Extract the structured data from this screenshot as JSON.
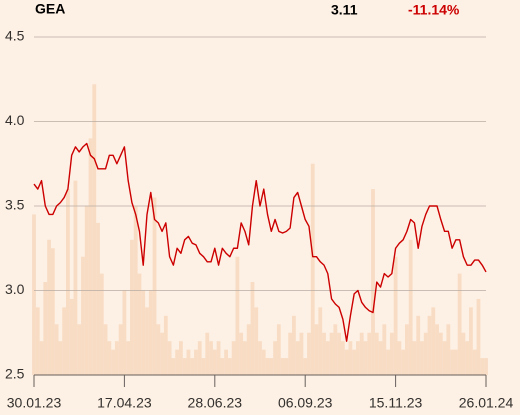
{
  "header": {
    "ticker": "GEA",
    "price": "3.11",
    "change": "-11.14%"
  },
  "chart_data": {
    "type": "line",
    "categories": [
      "30.01.23",
      null,
      null,
      null,
      null,
      null,
      null,
      null,
      null,
      null,
      null,
      null,
      null,
      null,
      null,
      null,
      null,
      null,
      null,
      null,
      null,
      null,
      null,
      null,
      "17.04.23",
      null,
      null,
      null,
      null,
      null,
      null,
      null,
      null,
      null,
      null,
      null,
      null,
      null,
      null,
      null,
      null,
      null,
      null,
      null,
      null,
      null,
      null,
      null,
      "28.06.23",
      null,
      null,
      null,
      null,
      null,
      null,
      null,
      null,
      null,
      null,
      null,
      null,
      null,
      null,
      null,
      null,
      null,
      null,
      null,
      null,
      null,
      null,
      null,
      "06.09.23",
      null,
      null,
      null,
      null,
      null,
      null,
      null,
      null,
      null,
      null,
      null,
      null,
      null,
      null,
      null,
      null,
      null,
      null,
      null,
      null,
      null,
      null,
      null,
      "15.11.23",
      null,
      null,
      null,
      null,
      null,
      null,
      null,
      null,
      null,
      null,
      null,
      null,
      null,
      null,
      null,
      null,
      null,
      null,
      null,
      null,
      null,
      null,
      null,
      "26.01.24"
    ],
    "series": [
      {
        "color": "#cc0000",
        "values": [
          3.63,
          3.6,
          3.65,
          3.5,
          3.45,
          3.45,
          3.5,
          3.52,
          3.55,
          3.6,
          3.8,
          3.85,
          3.82,
          3.85,
          3.87,
          3.8,
          3.78,
          3.72,
          3.72,
          3.72,
          3.8,
          3.8,
          3.75,
          3.8,
          3.85,
          3.65,
          3.52,
          3.45,
          3.35,
          3.15,
          3.45,
          3.58,
          3.42,
          3.4,
          3.35,
          3.4,
          3.2,
          3.15,
          3.25,
          3.22,
          3.3,
          3.32,
          3.28,
          3.27,
          3.22,
          3.2,
          3.17,
          3.17,
          3.25,
          3.15,
          3.25,
          3.22,
          3.2,
          3.25,
          3.25,
          3.4,
          3.35,
          3.27,
          3.5,
          3.65,
          3.5,
          3.6,
          3.45,
          3.35,
          3.42,
          3.35,
          3.34,
          3.35,
          3.37,
          3.55,
          3.58,
          3.5,
          3.42,
          3.38,
          3.2,
          3.2,
          3.17,
          3.15,
          3.1,
          2.95,
          2.92,
          2.9,
          2.83,
          2.7,
          2.85,
          2.98,
          3.0,
          2.93,
          2.9,
          2.88,
          2.87,
          3.05,
          3.02,
          3.1,
          3.08,
          3.1,
          3.25,
          3.28,
          3.3,
          3.35,
          3.42,
          3.4,
          3.25,
          3.38,
          3.45,
          3.5,
          3.5,
          3.5,
          3.42,
          3.35,
          3.35,
          3.25,
          3.3,
          3.3,
          3.2,
          3.15,
          3.15,
          3.18,
          3.18,
          3.15,
          3.11
        ]
      }
    ],
    "volume": {
      "color": "#f8dcc4",
      "values": [
        3.45,
        2.9,
        2.7,
        3.05,
        3.3,
        3.25,
        2.8,
        2.7,
        2.9,
        3.6,
        2.95,
        3.65,
        2.8,
        3.2,
        3.5,
        3.9,
        4.22,
        3.4,
        3.1,
        2.8,
        2.7,
        2.65,
        2.7,
        2.8,
        3.0,
        2.7,
        3.3,
        3.5,
        3.1,
        3.0,
        2.9,
        3.0,
        3.55,
        2.8,
        2.75,
        2.85,
        2.7,
        2.6,
        2.65,
        2.7,
        2.6,
        2.65,
        2.6,
        2.65,
        2.7,
        2.6,
        2.75,
        2.7,
        2.65,
        2.7,
        2.6,
        2.65,
        2.6,
        2.7,
        3.2,
        2.75,
        2.7,
        2.8,
        3.05,
        2.9,
        2.7,
        2.65,
        2.6,
        2.6,
        2.7,
        2.8,
        2.6,
        2.6,
        2.75,
        2.85,
        2.7,
        2.75,
        2.6,
        2.75,
        3.75,
        2.8,
        2.9,
        2.75,
        2.7,
        2.75,
        2.8,
        2.75,
        2.7,
        2.65,
        2.7,
        2.65,
        2.7,
        2.75,
        2.7,
        2.75,
        3.6,
        2.75,
        2.7,
        2.8,
        2.65,
        2.75,
        3.2,
        2.7,
        2.65,
        2.8,
        3.3,
        2.7,
        2.85,
        2.7,
        2.75,
        2.85,
        2.9,
        2.8,
        2.75,
        2.7,
        2.8,
        2.65,
        2.65,
        3.1,
        2.75,
        2.7,
        2.9,
        2.65,
        2.95,
        2.6,
        2.6
      ]
    },
    "ylim": [
      2.5,
      4.6
    ],
    "yticks": [
      2.5,
      {
        "value": 3,
        "label": "3.0"
      },
      3.5,
      {
        "value": 4,
        "label": "4.0"
      },
      4.5
    ],
    "grid": true
  }
}
